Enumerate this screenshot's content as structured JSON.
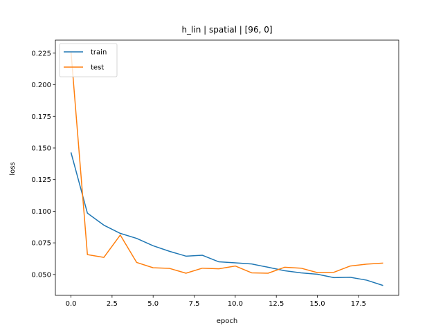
{
  "chart_data": {
    "type": "line",
    "title": "h_lin | spatial | [96, 0]",
    "xlabel": "epoch",
    "ylabel": "loss",
    "xlim": [
      -0.95,
      19.95
    ],
    "ylim": [
      0.0335,
      0.2353
    ],
    "xticks": [
      0,
      2.5,
      5,
      7.5,
      10,
      12.5,
      15,
      17.5
    ],
    "xtick_labels": [
      "0.0",
      "2.5",
      "5.0",
      "7.5",
      "10.0",
      "12.5",
      "15.0",
      "17.5"
    ],
    "yticks": [
      0.05,
      0.075,
      0.1,
      0.125,
      0.15,
      0.175,
      0.2,
      0.225
    ],
    "ytick_labels": [
      "0.050",
      "0.075",
      "0.100",
      "0.125",
      "0.150",
      "0.175",
      "0.200",
      "0.225"
    ],
    "legend_position": "top-left",
    "grid": false,
    "x": [
      0,
      1,
      2,
      3,
      4,
      5,
      6,
      7,
      8,
      9,
      10,
      11,
      12,
      13,
      14,
      15,
      16,
      17,
      18,
      19
    ],
    "series": [
      {
        "name": "train",
        "color": "#1f77b4",
        "values": [
          0.1465,
          0.0985,
          0.089,
          0.0825,
          0.0785,
          0.0727,
          0.0683,
          0.0645,
          0.0652,
          0.06,
          0.0592,
          0.0583,
          0.0557,
          0.053,
          0.0513,
          0.0502,
          0.0475,
          0.0478,
          0.0455,
          0.0413
        ]
      },
      {
        "name": "test",
        "color": "#ff7f0e",
        "values": [
          0.2263,
          0.0657,
          0.0635,
          0.0812,
          0.0595,
          0.0553,
          0.0548,
          0.051,
          0.055,
          0.0545,
          0.0567,
          0.0513,
          0.051,
          0.0557,
          0.055,
          0.0515,
          0.0517,
          0.0567,
          0.0582,
          0.059
        ]
      }
    ]
  }
}
